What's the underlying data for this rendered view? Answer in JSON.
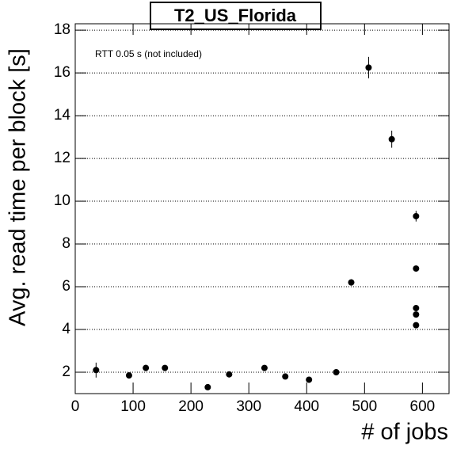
{
  "chart_data": {
    "type": "scatter",
    "title": "T2_US_Florida",
    "x_label": "# of jobs",
    "y_label": "Avg. read time per block [s]",
    "annotation": "RTT 0.05 s (not included)",
    "xlim": [
      0,
      646
    ],
    "ylim": [
      1,
      18.3
    ],
    "xticks": [
      0,
      100,
      200,
      300,
      400,
      500,
      600
    ],
    "yticks": [
      2,
      4,
      6,
      8,
      10,
      12,
      14,
      16,
      18
    ],
    "grid": true,
    "color": "#000000",
    "x": [
      36,
      93,
      122,
      155,
      229,
      266,
      327,
      363,
      404,
      451,
      477,
      507,
      547,
      589,
      589,
      589,
      589,
      589
    ],
    "values": [
      2.1,
      1.85,
      2.2,
      2.2,
      1.3,
      1.9,
      2.2,
      1.8,
      1.65,
      2.0,
      6.2,
      16.25,
      12.9,
      9.3,
      6.85,
      5.0,
      4.7,
      4.2
    ],
    "errors": [
      0.35,
      0.1,
      0.15,
      0.12,
      0.1,
      0.1,
      0.12,
      0.1,
      0.1,
      0.1,
      0.15,
      0.5,
      0.4,
      0.25,
      0.12,
      0.12,
      0.12,
      0.12
    ]
  }
}
